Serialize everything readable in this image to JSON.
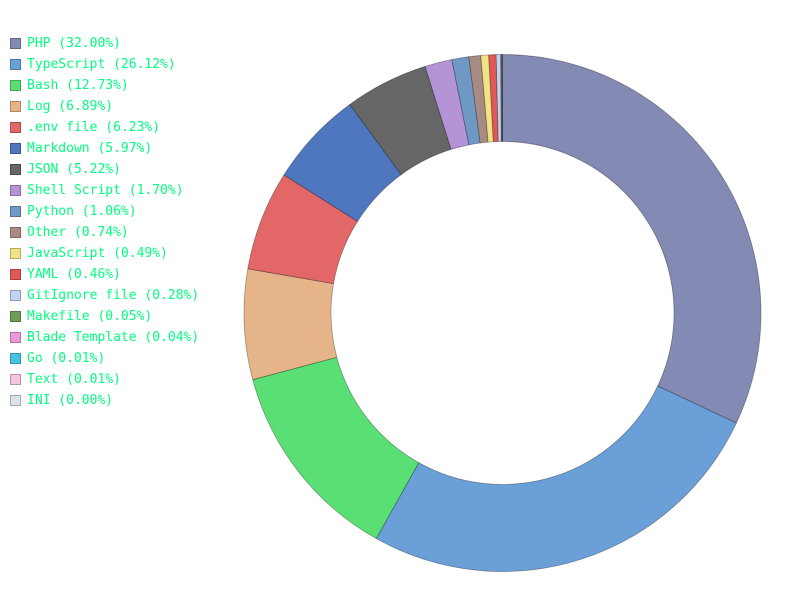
{
  "chart_data": {
    "type": "pie",
    "subtype": "donut",
    "legend_position": "top-left",
    "series": [
      {
        "name": "PHP",
        "label": "PHP (32.00%)",
        "value": 32.0,
        "color": "#838ab3"
      },
      {
        "name": "TypeScript",
        "label": "TypeScript (26.12%)",
        "value": 26.12,
        "color": "#6b9fd8"
      },
      {
        "name": "Bash",
        "label": "Bash (12.73%)",
        "value": 12.73,
        "color": "#5adf75"
      },
      {
        "name": "Log",
        "label": "Log (6.89%)",
        "value": 6.89,
        "color": "#e6b489"
      },
      {
        "name": ".env file",
        "label": ".env file (6.23%)",
        "value": 6.23,
        "color": "#e36767"
      },
      {
        "name": "Markdown",
        "label": "Markdown (5.97%)",
        "value": 5.97,
        "color": "#4f77c0"
      },
      {
        "name": "JSON",
        "label": "JSON (5.22%)",
        "value": 5.22,
        "color": "#666666"
      },
      {
        "name": "Shell Script",
        "label": "Shell Script (1.70%)",
        "value": 1.7,
        "color": "#b494d6"
      },
      {
        "name": "Python",
        "label": "Python (1.06%)",
        "value": 1.06,
        "color": "#6f99c4"
      },
      {
        "name": "Other",
        "label": "Other (0.74%)",
        "value": 0.74,
        "color": "#a88c84"
      },
      {
        "name": "JavaScript",
        "label": "JavaScript (0.49%)",
        "value": 0.49,
        "color": "#f2e384"
      },
      {
        "name": "YAML",
        "label": "YAML (0.46%)",
        "value": 0.46,
        "color": "#e05858"
      },
      {
        "name": "GitIgnore file",
        "label": "GitIgnore file (0.28%)",
        "value": 0.28,
        "color": "#c1d3f2"
      },
      {
        "name": "Makefile",
        "label": "Makefile (0.05%)",
        "value": 0.05,
        "color": "#6f9c55"
      },
      {
        "name": "Blade Template",
        "label": "Blade Template (0.04%)",
        "value": 0.04,
        "color": "#e99ad8"
      },
      {
        "name": "Go",
        "label": "Go (0.01%)",
        "value": 0.01,
        "color": "#46c4df"
      },
      {
        "name": "Text",
        "label": "Text (0.01%)",
        "value": 0.01,
        "color": "#f7c6dc"
      },
      {
        "name": "INI",
        "label": "INI (0.00%)",
        "value": 0.0,
        "color": "#d9e3e9"
      }
    ]
  }
}
